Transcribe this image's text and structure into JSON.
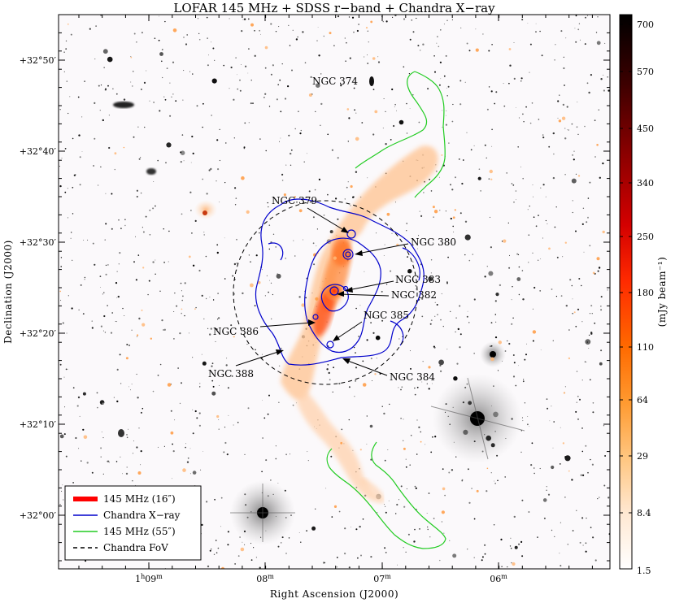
{
  "title": "LOFAR 145 MHz + SDSS r−band + Chandra X−ray",
  "axes": {
    "xlabel": "Right Ascension (J2000)",
    "ylabel": "Declination (J2000)",
    "x_ticks": [
      {
        "h": "1",
        "hsup": "h",
        "m": "09",
        "msup": "m"
      },
      {
        "h": "",
        "hsup": "",
        "m": "08",
        "msup": "m"
      },
      {
        "h": "",
        "hsup": "",
        "m": "07",
        "msup": "m"
      },
      {
        "h": "",
        "hsup": "",
        "m": "06",
        "msup": "m"
      }
    ],
    "y_ticks": [
      "+32°50′",
      "+32°40′",
      "+32°30′",
      "+32°20′",
      "+32°10′",
      "+32°00′"
    ]
  },
  "colorbar": {
    "label": "(mJy beam⁻¹)",
    "ticks": [
      "700",
      "570",
      "450",
      "340",
      "250",
      "180",
      "110",
      "64",
      "29",
      "8.4",
      "1.5"
    ],
    "colors": [
      "#000000",
      "#3a0000",
      "#8a0000",
      "#d40000",
      "#ff2a00",
      "#ff6a00",
      "#ff9a30",
      "#ffc680",
      "#ffe8d2",
      "#ffffff"
    ]
  },
  "galaxies": [
    {
      "name": "NGC 374"
    },
    {
      "name": "NGC 379"
    },
    {
      "name": "NGC 380"
    },
    {
      "name": "NGC 383"
    },
    {
      "name": "NGC 382"
    },
    {
      "name": "NGC 385"
    },
    {
      "name": "NGC 386"
    },
    {
      "name": "NGC 388"
    },
    {
      "name": "NGC 384"
    }
  ],
  "legend": [
    {
      "label": "145 MHz (16″)",
      "color": "#ff0000",
      "style": "thick"
    },
    {
      "label": "Chandra X−ray",
      "color": "#0000cc",
      "style": "line"
    },
    {
      "label": "145 MHz (55″)",
      "color": "#22cc22",
      "style": "line"
    },
    {
      "label": "Chandra FoV",
      "color": "#000000",
      "style": "dashed"
    }
  ]
}
